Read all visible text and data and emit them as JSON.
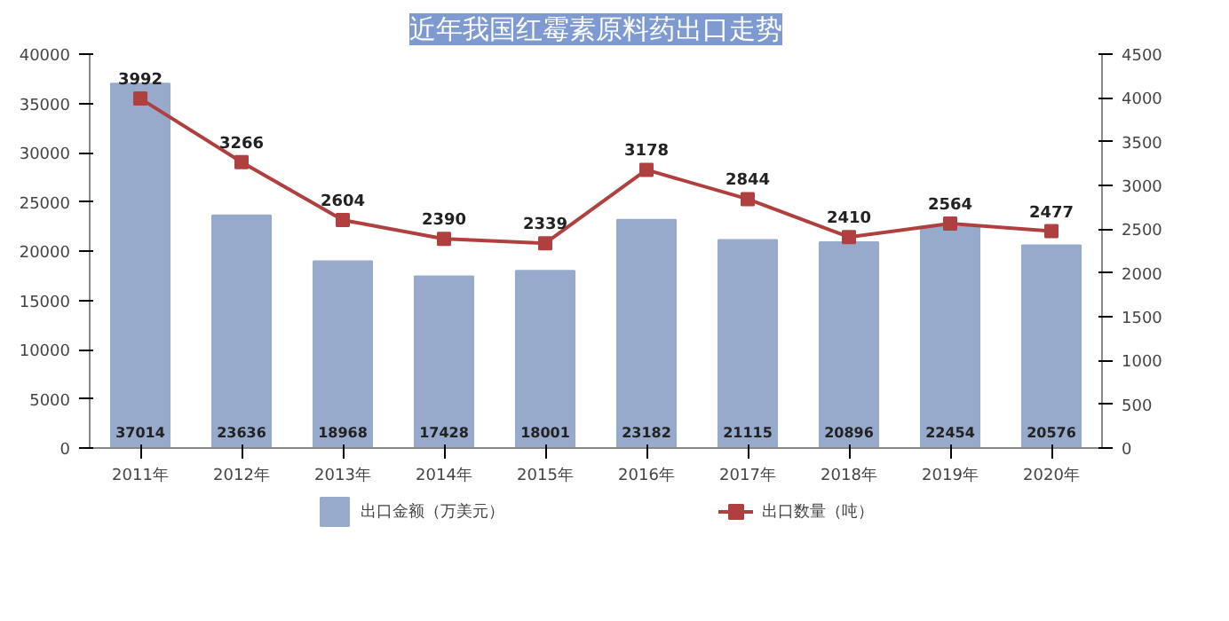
{
  "chart_data": {
    "type": "bar",
    "title": "近年我国红霉素原料药出口走势",
    "categories": [
      "2011年",
      "2012年",
      "2013年",
      "2014年",
      "2015年",
      "2016年",
      "2017年",
      "2018年",
      "2019年",
      "2020年"
    ],
    "series": [
      {
        "name": "出口金额（万美元）",
        "color": "#98aacb",
        "values": [
          37014,
          23636,
          18968,
          17428,
          18001,
          23182,
          21115,
          20896,
          22454,
          20576
        ]
      },
      {
        "name": "出口数量（吨）",
        "type": "line",
        "axis": "y2",
        "color": "#b0403f",
        "marker": "square",
        "values": [
          3992,
          3266,
          2604,
          2390,
          2339,
          3178,
          2844,
          2410,
          2564,
          2477
        ]
      }
    ],
    "ylim": [
      0,
      40000
    ],
    "yticks": [
      0,
      5000,
      10000,
      15000,
      20000,
      25000,
      30000,
      35000,
      40000
    ],
    "y2lim": [
      0,
      4500
    ],
    "y2ticks": [
      0,
      500,
      1000,
      1500,
      2000,
      2500,
      3000,
      3500,
      4000,
      4500
    ],
    "data_labels": true,
    "grid": false,
    "legend": "bottom"
  }
}
